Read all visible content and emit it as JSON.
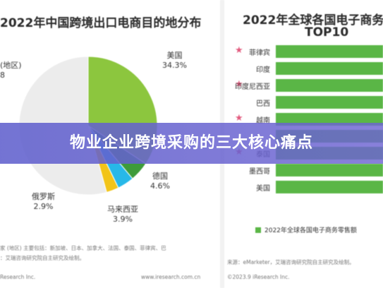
{
  "banner": {
    "title": "物业企业跨境采购的三大核心痛点"
  },
  "left_chart": {
    "title": "2022年中国跨境出口电商目的地分布",
    "labels": {
      "usa": {
        "name": "美国",
        "pct": "34.3%"
      },
      "germany": {
        "name": "德国",
        "pct": "4.6%"
      },
      "malaysia": {
        "name": "马来西亚",
        "pct": "3.9%"
      },
      "russia": {
        "name": "俄罗斯",
        "pct": "2.9%"
      },
      "other": {
        "name": "(地区)",
        "pct": "8"
      }
    },
    "source_note": "家 (地区) 主要包括：新加坡、日本、加拿大、法国、泰国、菲律宾、巴",
    "source_line2": "：艾瑞咨询研究院自主研究及绘制。",
    "footer": "Research Inc.",
    "footer_url": "www.iresearch.com.cn"
  },
  "right_chart": {
    "title_line1": "2022年全球各国电子商务",
    "title_line2": "TOP10",
    "bars": [
      {
        "label": "菲律宾",
        "star": true
      },
      {
        "label": "印度",
        "star": false
      },
      {
        "label": "印度尼西亚",
        "star": true
      },
      {
        "label": "巴西",
        "star": false
      },
      {
        "label": "越南",
        "star": true
      },
      {
        "label": "",
        "star": false
      },
      {
        "label": "泰国",
        "star": true
      },
      {
        "label": "墨西哥",
        "star": false
      },
      {
        "label": "美国",
        "star": false
      }
    ],
    "legend": "2022年全球各国电子商务零售额",
    "source": "来源：eMarketer，艾瑞咨询研究院自主研究及绘制。",
    "footer": "©2023.9 iResearch Inc."
  },
  "chart_data": {
    "type": "pie",
    "title": "2022年中国跨境出口电商目的地分布",
    "slices": [
      {
        "name": "美国",
        "value": 34.3
      },
      {
        "name": "德国",
        "value": 4.6
      },
      {
        "name": "马来西亚",
        "value": 3.9
      },
      {
        "name": "俄罗斯",
        "value": 2.9
      }
    ]
  },
  "colors": {
    "usa": "#8cc63e",
    "germany": "#3d9b3a",
    "malaysia": "#27b8e8",
    "russia": "#f2c418",
    "rest": "#ececec",
    "bar": "#5ab646",
    "banner": "#6464cd"
  }
}
